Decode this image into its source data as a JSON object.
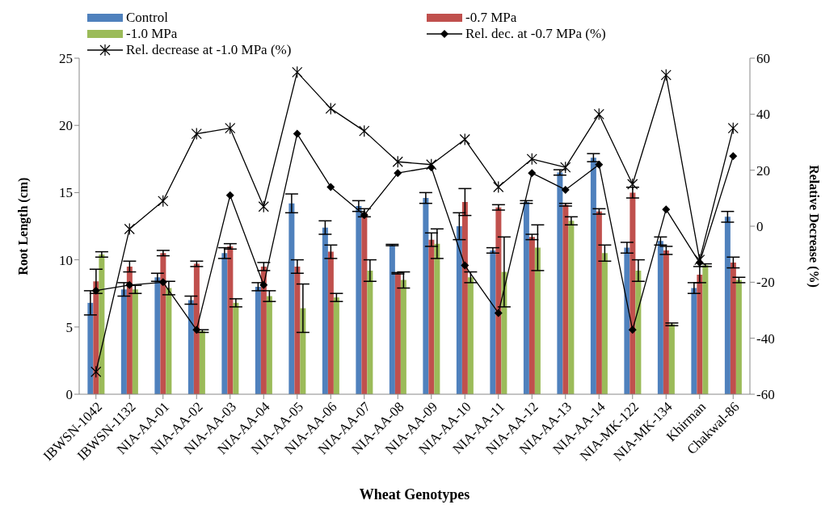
{
  "chart_data": {
    "type": "bar",
    "xlabel": "Wheat Genotypes",
    "ylabel": "Root Length (cm)",
    "y2label": "Relative Decrease (%)",
    "categories": [
      "IBWSN-1042",
      "IBWSN-1132",
      "NIA-AA-01",
      "NIA-AA-02",
      "NIA-AA-03",
      "NIA-AA-04",
      "NIA-AA-05",
      "NIA-AA-06",
      "NIA-AA-07",
      "NIA-AA-08",
      "NIA-AA-09",
      "NIA-AA-10",
      "NIA-AA-11",
      "NIA-AA-12",
      "NIA-AA-13",
      "NIA-AA-14",
      "NIA-MK-122",
      "NIA-MK-134",
      "Khirman",
      "Chakwal-86"
    ],
    "series": [
      {
        "name": "Control",
        "color": "#4f81bd",
        "values": [
          6.8,
          7.8,
          8.7,
          7.0,
          10.5,
          8.0,
          14.2,
          12.4,
          14.0,
          11.1,
          14.6,
          12.5,
          10.7,
          14.3,
          16.5,
          17.6,
          10.9,
          11.4,
          7.9,
          13.2
        ],
        "errors": [
          0.9,
          0.5,
          0.3,
          0.3,
          0.4,
          0.3,
          0.7,
          0.5,
          0.4,
          0.05,
          0.4,
          1.0,
          0.2,
          0.1,
          0.2,
          0.3,
          0.4,
          0.3,
          0.4,
          0.4
        ]
      },
      {
        "name": "-0.7 MPa",
        "color": "#c0504d",
        "values": [
          8.4,
          9.5,
          10.5,
          9.7,
          11.0,
          9.5,
          9.5,
          10.6,
          13.5,
          9.0,
          11.5,
          14.3,
          13.9,
          11.7,
          14.1,
          13.6,
          15.0,
          10.7,
          8.9,
          9.8
        ],
        "errors": [
          0.9,
          0.4,
          0.2,
          0.2,
          0.2,
          0.3,
          0.5,
          0.5,
          0.3,
          0.05,
          0.5,
          1.0,
          0.2,
          0.2,
          0.1,
          0.2,
          0.4,
          0.3,
          0.6,
          0.4
        ]
      },
      {
        "name": "-1.0 MPa",
        "color": "#9bbb59",
        "values": [
          10.4,
          7.8,
          7.9,
          4.7,
          6.8,
          7.3,
          6.4,
          7.2,
          9.2,
          8.5,
          11.2,
          8.7,
          9.1,
          10.9,
          12.9,
          10.5,
          9.2,
          5.2,
          9.6,
          8.5
        ],
        "errors": [
          0.2,
          0.3,
          0.5,
          0.1,
          0.3,
          0.4,
          1.8,
          0.3,
          0.8,
          0.6,
          1.1,
          0.4,
          2.6,
          1.7,
          0.3,
          0.6,
          0.8,
          0.1,
          0.1,
          0.2
        ]
      },
      {
        "name": "Rel. dec. at -0.7 MPa (%)",
        "type": "line",
        "axis": "y2",
        "marker": "diamond",
        "color": "#000000",
        "values": [
          -23,
          -21,
          -20,
          -37,
          11,
          -21,
          33,
          14,
          4,
          19,
          21,
          -14,
          -31,
          19,
          13,
          22,
          -37,
          6,
          -13,
          25
        ]
      },
      {
        "name": "Rel. decrease at -1.0 MPa (%)",
        "type": "line",
        "axis": "y2",
        "marker": "cross",
        "color": "#000000",
        "values": [
          -52,
          -1,
          9,
          33,
          35,
          7,
          55,
          42,
          34,
          23,
          22,
          31,
          14,
          24,
          21,
          40,
          15,
          54,
          -12,
          35
        ]
      }
    ],
    "ylim": [
      0,
      25
    ],
    "yticks": [
      0,
      5,
      10,
      15,
      20,
      25
    ],
    "y2lim": [
      -60,
      60
    ],
    "y2ticks": [
      -60,
      -40,
      -20,
      0,
      20,
      40,
      60
    ],
    "grid": false,
    "legend": "top",
    "line_style": "solid"
  }
}
